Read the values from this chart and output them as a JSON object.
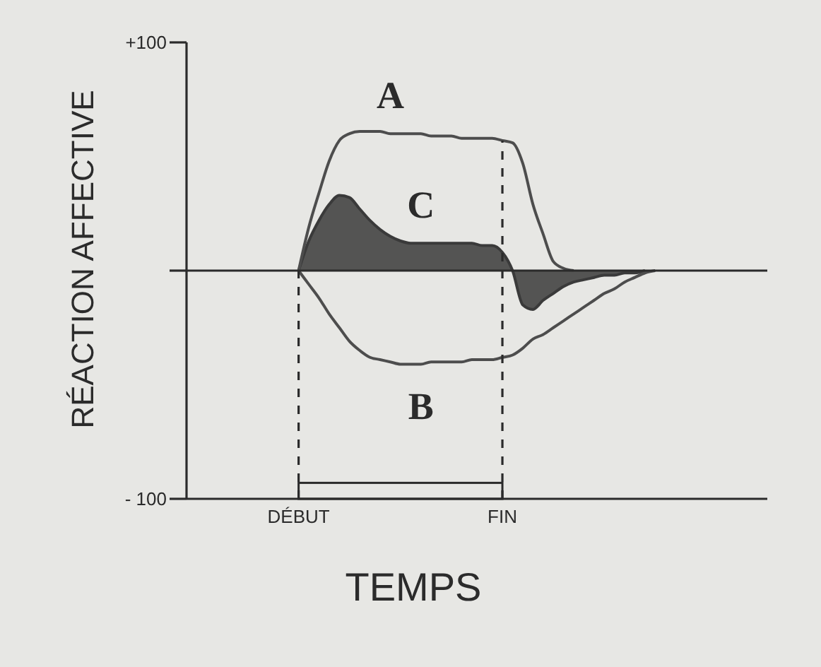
{
  "chart_data": {
    "type": "line",
    "xlabel": "TEMPS",
    "ylabel": "RÉACTION AFFECTIVE",
    "categories": [
      null,
      null,
      null,
      null,
      null,
      null,
      null,
      null,
      null,
      null,
      null,
      "DÉBUT",
      null,
      null,
      null,
      null,
      null,
      null,
      null,
      null,
      null,
      null,
      null,
      null,
      null,
      null,
      null,
      null,
      null,
      null,
      null,
      "FIN",
      null,
      null,
      null,
      null,
      null,
      null,
      null,
      null,
      null,
      null,
      null,
      null,
      null,
      null,
      null,
      null,
      null,
      null,
      null,
      null,
      null,
      null,
      null,
      null,
      null,
      null
    ],
    "ylim": [
      -100,
      100
    ],
    "yticks": [
      {
        "value": -100,
        "label": "- 100"
      },
      {
        "value": 0,
        "label": null
      },
      {
        "value": 100,
        "label": "+100"
      }
    ],
    "marker": "none",
    "line_style": "solid",
    "series": [
      {
        "name": "A",
        "color": "#4d4d4d",
        "values": [
          null,
          null,
          null,
          null,
          null,
          null,
          null,
          null,
          null,
          null,
          null,
          0,
          19,
          34,
          48,
          57,
          60,
          61,
          61,
          61,
          60,
          60,
          60,
          60,
          59,
          59,
          59,
          58,
          58,
          58,
          58,
          57,
          56,
          47,
          29,
          16,
          4,
          1,
          0,
          null,
          null,
          null,
          null,
          null,
          null,
          null,
          null,
          null,
          null,
          null,
          null,
          null,
          null,
          null,
          null,
          null,
          null,
          null
        ]
      },
      {
        "name": "B",
        "color": "#4d4d4d",
        "values": [
          null,
          null,
          null,
          null,
          null,
          null,
          null,
          null,
          null,
          null,
          null,
          0,
          -6,
          -12,
          -19,
          -25,
          -31,
          -35,
          -38,
          -39,
          -40,
          -41,
          -41,
          -41,
          -40,
          -40,
          -40,
          -40,
          -39,
          -39,
          -39,
          -38,
          -37,
          -34,
          -30,
          -28,
          -25,
          -22,
          -19,
          -16,
          -13,
          -10,
          -8,
          -5,
          -3,
          -1,
          0,
          null,
          null,
          null,
          null,
          null,
          null,
          null,
          null,
          null,
          null,
          null
        ]
      },
      {
        "name": "C",
        "type": "area",
        "color": "#3a3a3a",
        "values": [
          null,
          null,
          null,
          null,
          null,
          null,
          null,
          null,
          null,
          null,
          null,
          0,
          13,
          22,
          29,
          33,
          32,
          27,
          22,
          18,
          15,
          13,
          12,
          12,
          12,
          12,
          12,
          12,
          12,
          11,
          11,
          8,
          0,
          -15,
          -17,
          -13,
          -10,
          -7,
          -5,
          -4,
          -3,
          -2,
          -2,
          -1,
          -1,
          0,
          null,
          null,
          null,
          null,
          null,
          null,
          null,
          null,
          null,
          null,
          null,
          null
        ]
      }
    ],
    "ref_lines": [
      {
        "axis": "y",
        "value": 0,
        "line_style": "solid"
      },
      {
        "axis": "x",
        "value": "DÉBUT",
        "line_style": "dashed"
      },
      {
        "axis": "x",
        "value": "FIN",
        "line_style": "dashed"
      }
    ]
  }
}
